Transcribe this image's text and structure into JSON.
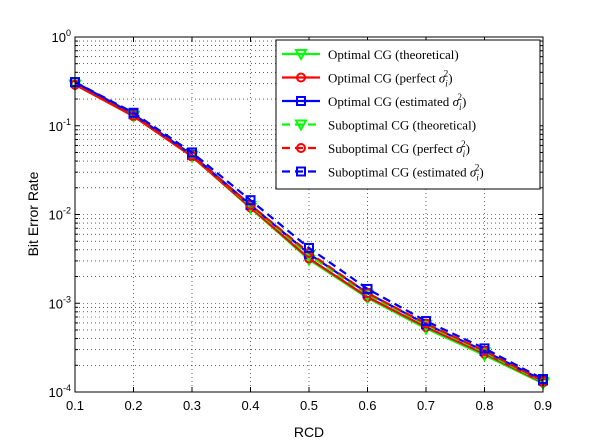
{
  "chart_data": {
    "type": "line",
    "xlabel": "RCD",
    "ylabel": "Bit Error Rate",
    "xlim": [
      0.1,
      0.9
    ],
    "ylim": [
      0.0001,
      1
    ],
    "yscale": "log",
    "grid": true,
    "legend_position": "top-right",
    "x": [
      0.1,
      0.2,
      0.3,
      0.4,
      0.5,
      0.6,
      0.7,
      0.8,
      0.9
    ],
    "x_tick_labels": [
      "0.1",
      "0.2",
      "0.3",
      "0.4",
      "0.5",
      "0.6",
      "0.7",
      "0.8",
      "0.9"
    ],
    "y_ticks": [
      {
        "value": 1,
        "base": "10",
        "exp": "0"
      },
      {
        "value": 0.1,
        "base": "10",
        "exp": "-1"
      },
      {
        "value": 0.01,
        "base": "10",
        "exp": "-2"
      },
      {
        "value": 0.001,
        "base": "10",
        "exp": "-3"
      },
      {
        "value": 0.0001,
        "base": "10",
        "exp": "-4"
      }
    ],
    "series": [
      {
        "name": "Optimal CG (theoretical)",
        "color": "#00ff00",
        "dash": "solid",
        "marker": "triangle-down",
        "values": [
          0.29,
          0.128,
          0.045,
          0.0118,
          0.0031,
          0.00115,
          0.00052,
          0.00026,
          0.000125
        ]
      },
      {
        "name": "Optimal CG (perfect σ_i^2)",
        "color": "#ff0000",
        "dash": "solid",
        "marker": "circle",
        "values": [
          0.29,
          0.128,
          0.045,
          0.012,
          0.0032,
          0.00118,
          0.00054,
          0.00027,
          0.000128
        ]
      },
      {
        "name": "Optimal CG (estimated σ_i^2)",
        "color": "#0000ff",
        "dash": "solid",
        "marker": "square",
        "values": [
          0.31,
          0.135,
          0.047,
          0.0128,
          0.0036,
          0.0013,
          0.00058,
          0.00029,
          0.000135
        ]
      },
      {
        "name": "Suboptimal CG (theoretical)",
        "color": "#00ff00",
        "dash": "dashed",
        "marker": "triangle-down",
        "values": [
          0.29,
          0.13,
          0.046,
          0.0125,
          0.0035,
          0.00125,
          0.00057,
          0.00028,
          0.00013
        ]
      },
      {
        "name": "Suboptimal CG (perfect σ_i^2)",
        "color": "#ff0000",
        "dash": "dashed",
        "marker": "circle",
        "values": [
          0.29,
          0.13,
          0.046,
          0.0128,
          0.0037,
          0.0013,
          0.00059,
          0.00029,
          0.000133
        ]
      },
      {
        "name": "Suboptimal CG (estimated σ_i^2)",
        "color": "#0000ff",
        "dash": "dashed",
        "marker": "square",
        "values": [
          0.31,
          0.14,
          0.05,
          0.0145,
          0.0042,
          0.00145,
          0.00063,
          0.00031,
          0.00014
        ]
      }
    ],
    "legend": [
      {
        "prefix": "Optimal CG (theoretical)",
        "sigma": "",
        "suffix": ""
      },
      {
        "prefix": "Optimal CG (perfect ",
        "sigma": "σ",
        "suffix": ")"
      },
      {
        "prefix": "Optimal CG (estimated ",
        "sigma": "σ",
        "suffix": ")"
      },
      {
        "prefix": "Suboptimal CG (theoretical)",
        "sigma": "",
        "suffix": ""
      },
      {
        "prefix": "Suboptimal CG (perfect ",
        "sigma": "σ",
        "suffix": ")"
      },
      {
        "prefix": "Suboptimal CG (estimated ",
        "sigma": "σ",
        "suffix": ")"
      }
    ],
    "sigma_sub": "i",
    "sigma_sup": "2"
  }
}
